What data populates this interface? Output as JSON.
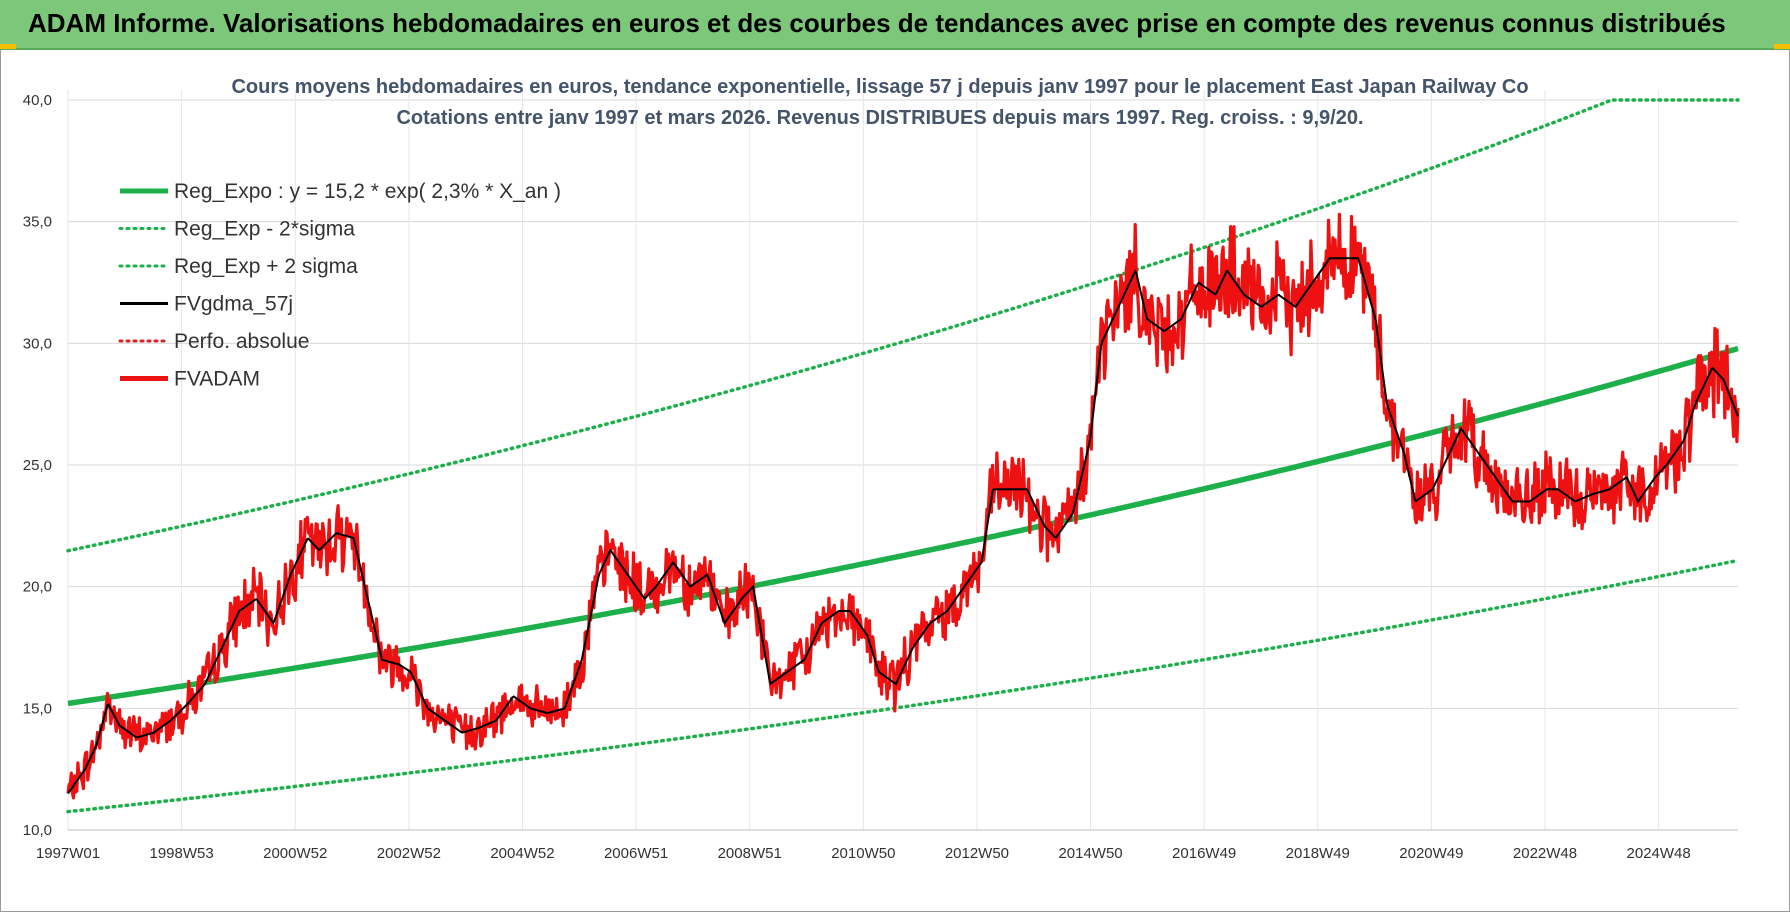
{
  "header": {
    "title": "ADAM Informe. Valorisations hebdomadaires en euros et des courbes de tendances avec prise en compte des revenus connus distribués"
  },
  "colors": {
    "header_bg": "#7cc77a",
    "reg_expo": "#1db04a",
    "sigma": "#1db04a",
    "fvgdma": "#000000",
    "perfo": "#e02020",
    "fvadam": "#ee1111"
  },
  "chart_data": {
    "type": "line",
    "title": "Cours moyens hebdomadaires en euros, tendance exponentielle, lissage 57 j depuis janv 1997  pour le placement East Japan Railway Co",
    "subtitle": "Cotations entre janv 1997 et mars 2026. Revenus DISTRIBUES depuis mars 1997.  Reg. croiss. : 9,9/20.",
    "xlabel": "",
    "ylabel": "",
    "xlim": [
      1997.0,
      2026.25
    ],
    "ylim": [
      10,
      40
    ],
    "y_ticks": [
      "10,0",
      "15,0",
      "20,0",
      "25,0",
      "30,0",
      "35,0",
      "40,0"
    ],
    "x_ticks": [
      "1997W01",
      "1998W53",
      "2000W52",
      "2002W52",
      "2004W52",
      "2006W51",
      "2008W51",
      "2010W50",
      "2012W50",
      "2014W50",
      "2016W49",
      "2018W49",
      "2020W49",
      "2022W48",
      "2024W48"
    ],
    "grid": true,
    "legend_placement": "top-left",
    "regression": {
      "a": 15.2,
      "rate": 0.023,
      "sigma_factor": 1.413
    },
    "series": [
      {
        "name": "Reg_Expo : y = 15,2 * exp( 2,3% *  X_an )",
        "style": "thick-solid",
        "color": "#1db04a",
        "kind": "reg"
      },
      {
        "name": "Reg_Exp - 2*sigma",
        "style": "dotted",
        "color": "#1db04a",
        "kind": "low"
      },
      {
        "name": "Reg_Exp + 2 sigma",
        "style": "dotted",
        "color": "#1db04a",
        "kind": "high"
      },
      {
        "name": "FVgdma_57j",
        "style": "solid",
        "color": "#000000",
        "kind": "smooth"
      },
      {
        "name": "Perfo. absolue",
        "style": "dotted",
        "color": "#e02020",
        "kind": "perfo"
      },
      {
        "name": "FVADAM",
        "style": "thick-solid",
        "color": "#ee1111",
        "kind": "price"
      }
    ],
    "price_points": [
      [
        1997.0,
        11.5
      ],
      [
        1997.3,
        12.5
      ],
      [
        1997.5,
        13.5
      ],
      [
        1997.7,
        15.2
      ],
      [
        1997.9,
        14.3
      ],
      [
        1998.2,
        13.8
      ],
      [
        1998.5,
        14.0
      ],
      [
        1998.8,
        14.5
      ],
      [
        1999.1,
        15.2
      ],
      [
        1999.4,
        16.0
      ],
      [
        1999.7,
        17.5
      ],
      [
        2000.0,
        19.0
      ],
      [
        2000.3,
        19.5
      ],
      [
        2000.6,
        18.5
      ],
      [
        2000.9,
        20.5
      ],
      [
        2001.2,
        22.0
      ],
      [
        2001.4,
        21.5
      ],
      [
        2001.7,
        22.2
      ],
      [
        2002.0,
        22.0
      ],
      [
        2002.3,
        19.0
      ],
      [
        2002.5,
        17.0
      ],
      [
        2002.8,
        16.8
      ],
      [
        2003.0,
        16.5
      ],
      [
        2003.3,
        15.0
      ],
      [
        2003.6,
        14.5
      ],
      [
        2003.9,
        14.0
      ],
      [
        2004.2,
        14.2
      ],
      [
        2004.5,
        14.5
      ],
      [
        2004.8,
        15.5
      ],
      [
        2005.1,
        15.0
      ],
      [
        2005.4,
        14.8
      ],
      [
        2005.7,
        15.0
      ],
      [
        2006.0,
        17.0
      ],
      [
        2006.3,
        20.5
      ],
      [
        2006.5,
        21.5
      ],
      [
        2006.8,
        20.5
      ],
      [
        2007.1,
        19.5
      ],
      [
        2007.3,
        20.0
      ],
      [
        2007.6,
        21.0
      ],
      [
        2007.9,
        20.0
      ],
      [
        2008.2,
        20.5
      ],
      [
        2008.5,
        18.5
      ],
      [
        2008.8,
        19.5
      ],
      [
        2009.0,
        20.0
      ],
      [
        2009.3,
        16.0
      ],
      [
        2009.6,
        16.5
      ],
      [
        2009.9,
        17.0
      ],
      [
        2010.2,
        18.5
      ],
      [
        2010.5,
        19.0
      ],
      [
        2010.7,
        19.0
      ],
      [
        2011.0,
        18.0
      ],
      [
        2011.2,
        16.5
      ],
      [
        2011.5,
        16.0
      ],
      [
        2011.8,
        17.5
      ],
      [
        2012.1,
        18.5
      ],
      [
        2012.4,
        19.0
      ],
      [
        2012.7,
        20.0
      ],
      [
        2013.0,
        21.0
      ],
      [
        2013.2,
        24.0
      ],
      [
        2013.5,
        24.0
      ],
      [
        2013.8,
        24.0
      ],
      [
        2014.1,
        22.5
      ],
      [
        2014.3,
        22.0
      ],
      [
        2014.6,
        23.0
      ],
      [
        2014.9,
        26.0
      ],
      [
        2015.1,
        30.0
      ],
      [
        2015.4,
        31.5
      ],
      [
        2015.7,
        33.0
      ],
      [
        2015.9,
        31.0
      ],
      [
        2016.2,
        30.5
      ],
      [
        2016.5,
        31.0
      ],
      [
        2016.8,
        32.5
      ],
      [
        2017.1,
        32.0
      ],
      [
        2017.3,
        33.0
      ],
      [
        2017.6,
        32.0
      ],
      [
        2017.9,
        31.5
      ],
      [
        2018.2,
        32.0
      ],
      [
        2018.5,
        31.5
      ],
      [
        2018.8,
        32.5
      ],
      [
        2019.1,
        33.5
      ],
      [
        2019.3,
        33.5
      ],
      [
        2019.6,
        33.5
      ],
      [
        2019.9,
        31.0
      ],
      [
        2020.1,
        27.5
      ],
      [
        2020.4,
        25.5
      ],
      [
        2020.6,
        23.5
      ],
      [
        2020.9,
        24.0
      ],
      [
        2021.2,
        25.5
      ],
      [
        2021.4,
        26.5
      ],
      [
        2021.7,
        25.5
      ],
      [
        2022.0,
        24.5
      ],
      [
        2022.3,
        23.5
      ],
      [
        2022.6,
        23.5
      ],
      [
        2022.9,
        24.0
      ],
      [
        2023.1,
        24.0
      ],
      [
        2023.4,
        23.5
      ],
      [
        2023.7,
        23.8
      ],
      [
        2024.0,
        24.0
      ],
      [
        2024.3,
        24.5
      ],
      [
        2024.5,
        23.5
      ],
      [
        2024.8,
        24.5
      ],
      [
        2025.0,
        25.0
      ],
      [
        2025.3,
        26.0
      ],
      [
        2025.5,
        27.5
      ],
      [
        2025.8,
        29.0
      ],
      [
        2026.0,
        28.5
      ],
      [
        2026.25,
        27.0
      ]
    ]
  }
}
